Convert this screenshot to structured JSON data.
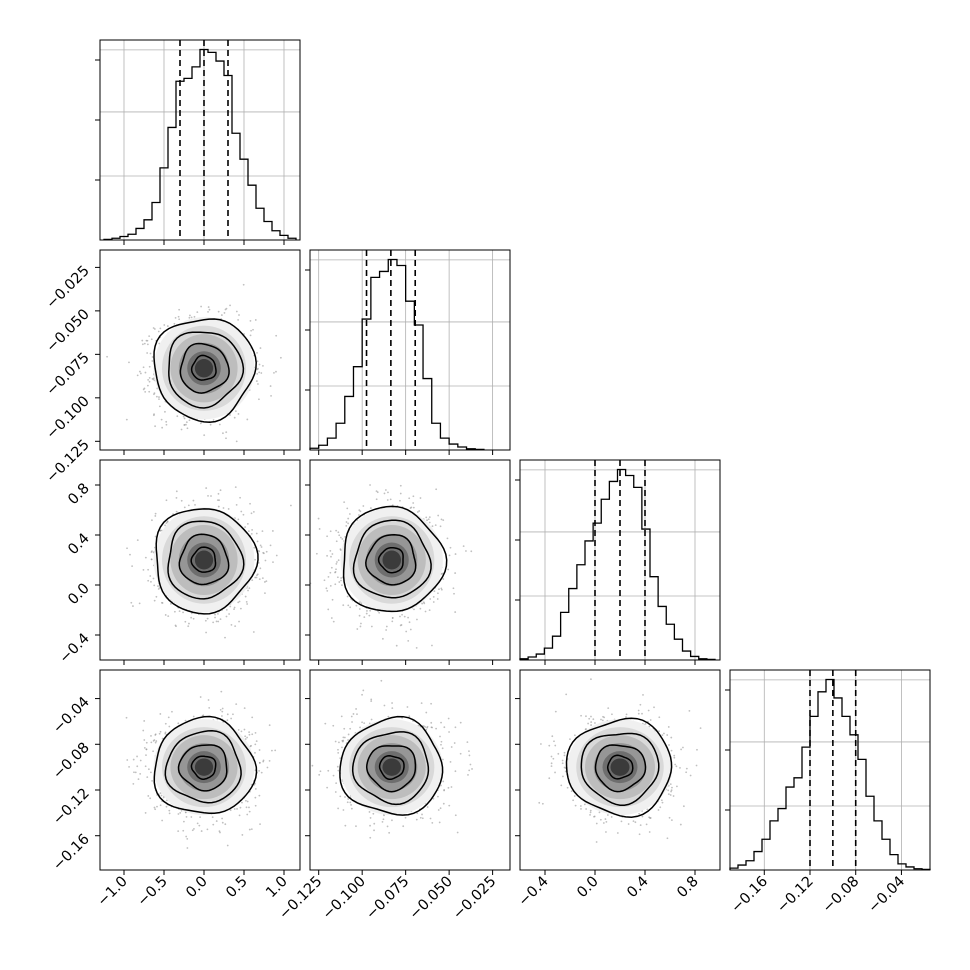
{
  "chart_data": {
    "type": "corner",
    "title": "",
    "n_parameters": 4,
    "parameter_labels": [
      "",
      "",
      "",
      ""
    ],
    "quantiles": [
      0.16,
      0.5,
      0.84
    ],
    "grid": true,
    "colors": {
      "ink": "#000000",
      "grid": "#b0b0b0",
      "scatter": "#8c8c8c"
    },
    "parameters": [
      {
        "index": 0,
        "range": [
          -1.3,
          1.2
        ],
        "ticks": [
          -1.0,
          -0.5,
          0.0,
          0.5,
          1.0
        ],
        "tick_labels": [
          "−1.0",
          "−0.5",
          "0.0",
          "0.5",
          "1.0"
        ],
        "quantile_values": [
          -0.3,
          0.0,
          0.3
        ],
        "histogram": {
          "bin_edges": [
            -1.25,
            -1.15,
            -1.05,
            -0.95,
            -0.85,
            -0.75,
            -0.65,
            -0.55,
            -0.45,
            -0.35,
            -0.25,
            -0.15,
            -0.05,
            0.05,
            0.15,
            0.25,
            0.35,
            0.45,
            0.55,
            0.65,
            0.75,
            0.85,
            0.95,
            1.05,
            1.15
          ],
          "counts": [
            0.1,
            0.3,
            0.6,
            1.0,
            2.0,
            3.5,
            6.5,
            12.5,
            19.5,
            27.5,
            28.0,
            30.0,
            33.0,
            32.5,
            31.0,
            28.5,
            18.5,
            14.0,
            9.5,
            5.5,
            3.2,
            1.6,
            0.8,
            0.3
          ]
        }
      },
      {
        "index": 1,
        "range": [
          -0.13,
          -0.015
        ],
        "ticks": [
          -0.125,
          -0.1,
          -0.075,
          -0.05,
          -0.025
        ],
        "tick_labels": [
          "−0.125",
          "−0.100",
          "−0.075",
          "−0.050",
          "−0.025"
        ],
        "quantile_values": [
          -0.0975,
          -0.0835,
          -0.0695
        ],
        "histogram": {
          "bin_edges": [
            -0.13,
            -0.125,
            -0.12,
            -0.115,
            -0.11,
            -0.105,
            -0.1,
            -0.095,
            -0.09,
            -0.085,
            -0.08,
            -0.075,
            -0.07,
            -0.065,
            -0.06,
            -0.055,
            -0.05,
            -0.045,
            -0.04,
            -0.035,
            -0.03
          ],
          "counts": [
            0.3,
            0.8,
            2.0,
            4.5,
            9.0,
            14.0,
            22.0,
            29.0,
            30.0,
            32.0,
            31.0,
            25.0,
            21.0,
            12.0,
            4.5,
            2.0,
            1.0,
            0.5,
            0.2,
            0.1
          ]
        }
      },
      {
        "index": 2,
        "range": [
          -0.6,
          1.0
        ],
        "ticks": [
          -0.4,
          0.0,
          0.4,
          0.8
        ],
        "tick_labels": [
          "−0.4",
          "0.0",
          "0.4",
          "0.8"
        ],
        "quantile_values": [
          0.0,
          0.2,
          0.4
        ],
        "histogram": {
          "bin_edges": [
            -0.6,
            -0.535,
            -0.47,
            -0.405,
            -0.34,
            -0.275,
            -0.21,
            -0.145,
            -0.08,
            -0.015,
            0.05,
            0.115,
            0.18,
            0.245,
            0.31,
            0.375,
            0.44,
            0.505,
            0.57,
            0.635,
            0.7,
            0.765,
            0.83,
            0.895,
            0.96
          ],
          "counts": [
            0.2,
            0.5,
            1.0,
            2.0,
            4.0,
            8.0,
            12.0,
            16.0,
            20.0,
            23.0,
            27.0,
            30.0,
            32.0,
            31.0,
            29.0,
            22.0,
            14.0,
            9.0,
            6.0,
            3.5,
            1.5,
            0.6,
            0.2,
            0.1
          ]
        }
      },
      {
        "index": 3,
        "range": [
          -0.19,
          -0.015
        ],
        "ticks": [
          -0.16,
          -0.12,
          -0.08,
          -0.04
        ],
        "tick_labels": [
          "−0.16",
          "−0.12",
          "−0.08",
          "−0.04"
        ],
        "quantile_values": [
          -0.12,
          -0.1,
          -0.08
        ],
        "histogram": {
          "bin_edges": [
            -0.19,
            -0.183,
            -0.176,
            -0.169,
            -0.162,
            -0.155,
            -0.148,
            -0.141,
            -0.134,
            -0.127,
            -0.12,
            -0.113,
            -0.106,
            -0.099,
            -0.092,
            -0.085,
            -0.078,
            -0.071,
            -0.064,
            -0.057,
            -0.05,
            -0.043,
            -0.036,
            -0.029,
            -0.022,
            -0.015
          ],
          "counts": [
            0.3,
            0.8,
            1.5,
            3.0,
            5.0,
            8.0,
            10.0,
            13.5,
            15.0,
            20.0,
            25.0,
            29.0,
            31.0,
            28.0,
            25.0,
            22.0,
            18.0,
            12.0,
            8.0,
            5.0,
            2.5,
            1.0,
            0.5,
            0.2,
            0.1
          ]
        }
      }
    ],
    "pairs": [
      {
        "row": 1,
        "col": 0,
        "center": [
          0.0,
          -0.083
        ]
      },
      {
        "row": 2,
        "col": 0,
        "center": [
          0.0,
          0.2
        ]
      },
      {
        "row": 2,
        "col": 1,
        "center": [
          -0.083,
          0.2
        ]
      },
      {
        "row": 3,
        "col": 0,
        "center": [
          0.0,
          -0.1
        ]
      },
      {
        "row": 3,
        "col": 1,
        "center": [
          -0.083,
          -0.1
        ]
      },
      {
        "row": 3,
        "col": 2,
        "center": [
          0.2,
          -0.1
        ]
      }
    ],
    "sigma": [
      0.3,
      0.014,
      0.2,
      0.02
    ]
  }
}
